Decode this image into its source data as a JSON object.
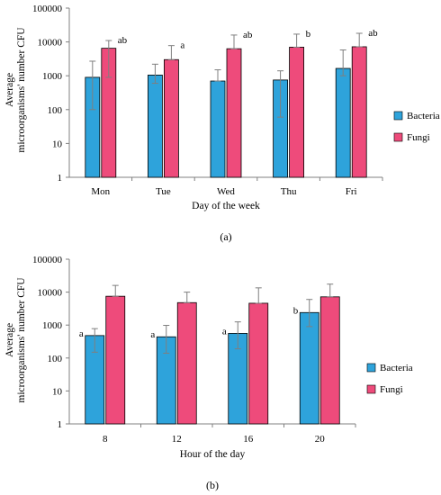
{
  "colors": {
    "bacteria": "#2EA3DB",
    "fungi": "#EE4B7B",
    "axis": "#808080",
    "error": "#7f7f7f"
  },
  "chart_data": [
    {
      "type": "bar",
      "panel": "(a)",
      "xlabel": "Day of the week",
      "ylabel": "Average microorganisms' number CFU m⁻³",
      "y_scale": "log",
      "ylim": [
        1,
        100000
      ],
      "y_ticks": [
        "1",
        "10",
        "100",
        "1000",
        "10000",
        "100000"
      ],
      "y_tick_values": [
        1,
        10,
        100,
        1000,
        10000,
        100000
      ],
      "categories": [
        "Mon",
        "Tue",
        "Wed",
        "Thu",
        "Fri"
      ],
      "legend_position": "right",
      "series": [
        {
          "name": "Bacteria",
          "color_key": "bacteria",
          "values": [
            900,
            1050,
            700,
            750,
            1650
          ],
          "err_low": [
            100,
            600,
            700,
            60,
            1000
          ],
          "err_high": [
            2700,
            2200,
            1500,
            1400,
            5800
          ],
          "labels": [
            "",
            "",
            "",
            "",
            ""
          ]
        },
        {
          "name": "Fungi",
          "color_key": "fungi",
          "values": [
            6500,
            3000,
            6300,
            7000,
            7200
          ],
          "err_low": [
            900,
            3000,
            6300,
            7000,
            7200
          ],
          "err_high": [
            11000,
            7800,
            16000,
            17000,
            18000
          ],
          "labels": [
            "ab",
            "a",
            "ab",
            "b",
            "ab"
          ]
        }
      ]
    },
    {
      "type": "bar",
      "panel": "(b)",
      "xlabel": "Hour of the day",
      "ylabel": "Average microorganisms' number CFU m⁻³",
      "y_scale": "log",
      "ylim": [
        1,
        100000
      ],
      "y_ticks": [
        "1",
        "10",
        "100",
        "1000",
        "10000",
        "100000"
      ],
      "y_tick_values": [
        1,
        10,
        100,
        1000,
        10000,
        100000
      ],
      "categories": [
        "8",
        "12",
        "16",
        "20"
      ],
      "legend_position": "right",
      "series": [
        {
          "name": "Bacteria",
          "color_key": "bacteria",
          "values": [
            480,
            440,
            560,
            2400
          ],
          "err_low": [
            150,
            140,
            190,
            900
          ],
          "err_high": [
            780,
            980,
            1250,
            6000
          ],
          "labels": [
            "a",
            "a",
            "a",
            "b"
          ]
        },
        {
          "name": "Fungi",
          "color_key": "fungi",
          "values": [
            7500,
            4800,
            4600,
            7200
          ],
          "err_low": [
            7500,
            4800,
            4600,
            7200
          ],
          "err_high": [
            16000,
            10000,
            13500,
            17500
          ],
          "labels": [
            "",
            "",
            "",
            ""
          ]
        }
      ]
    }
  ]
}
